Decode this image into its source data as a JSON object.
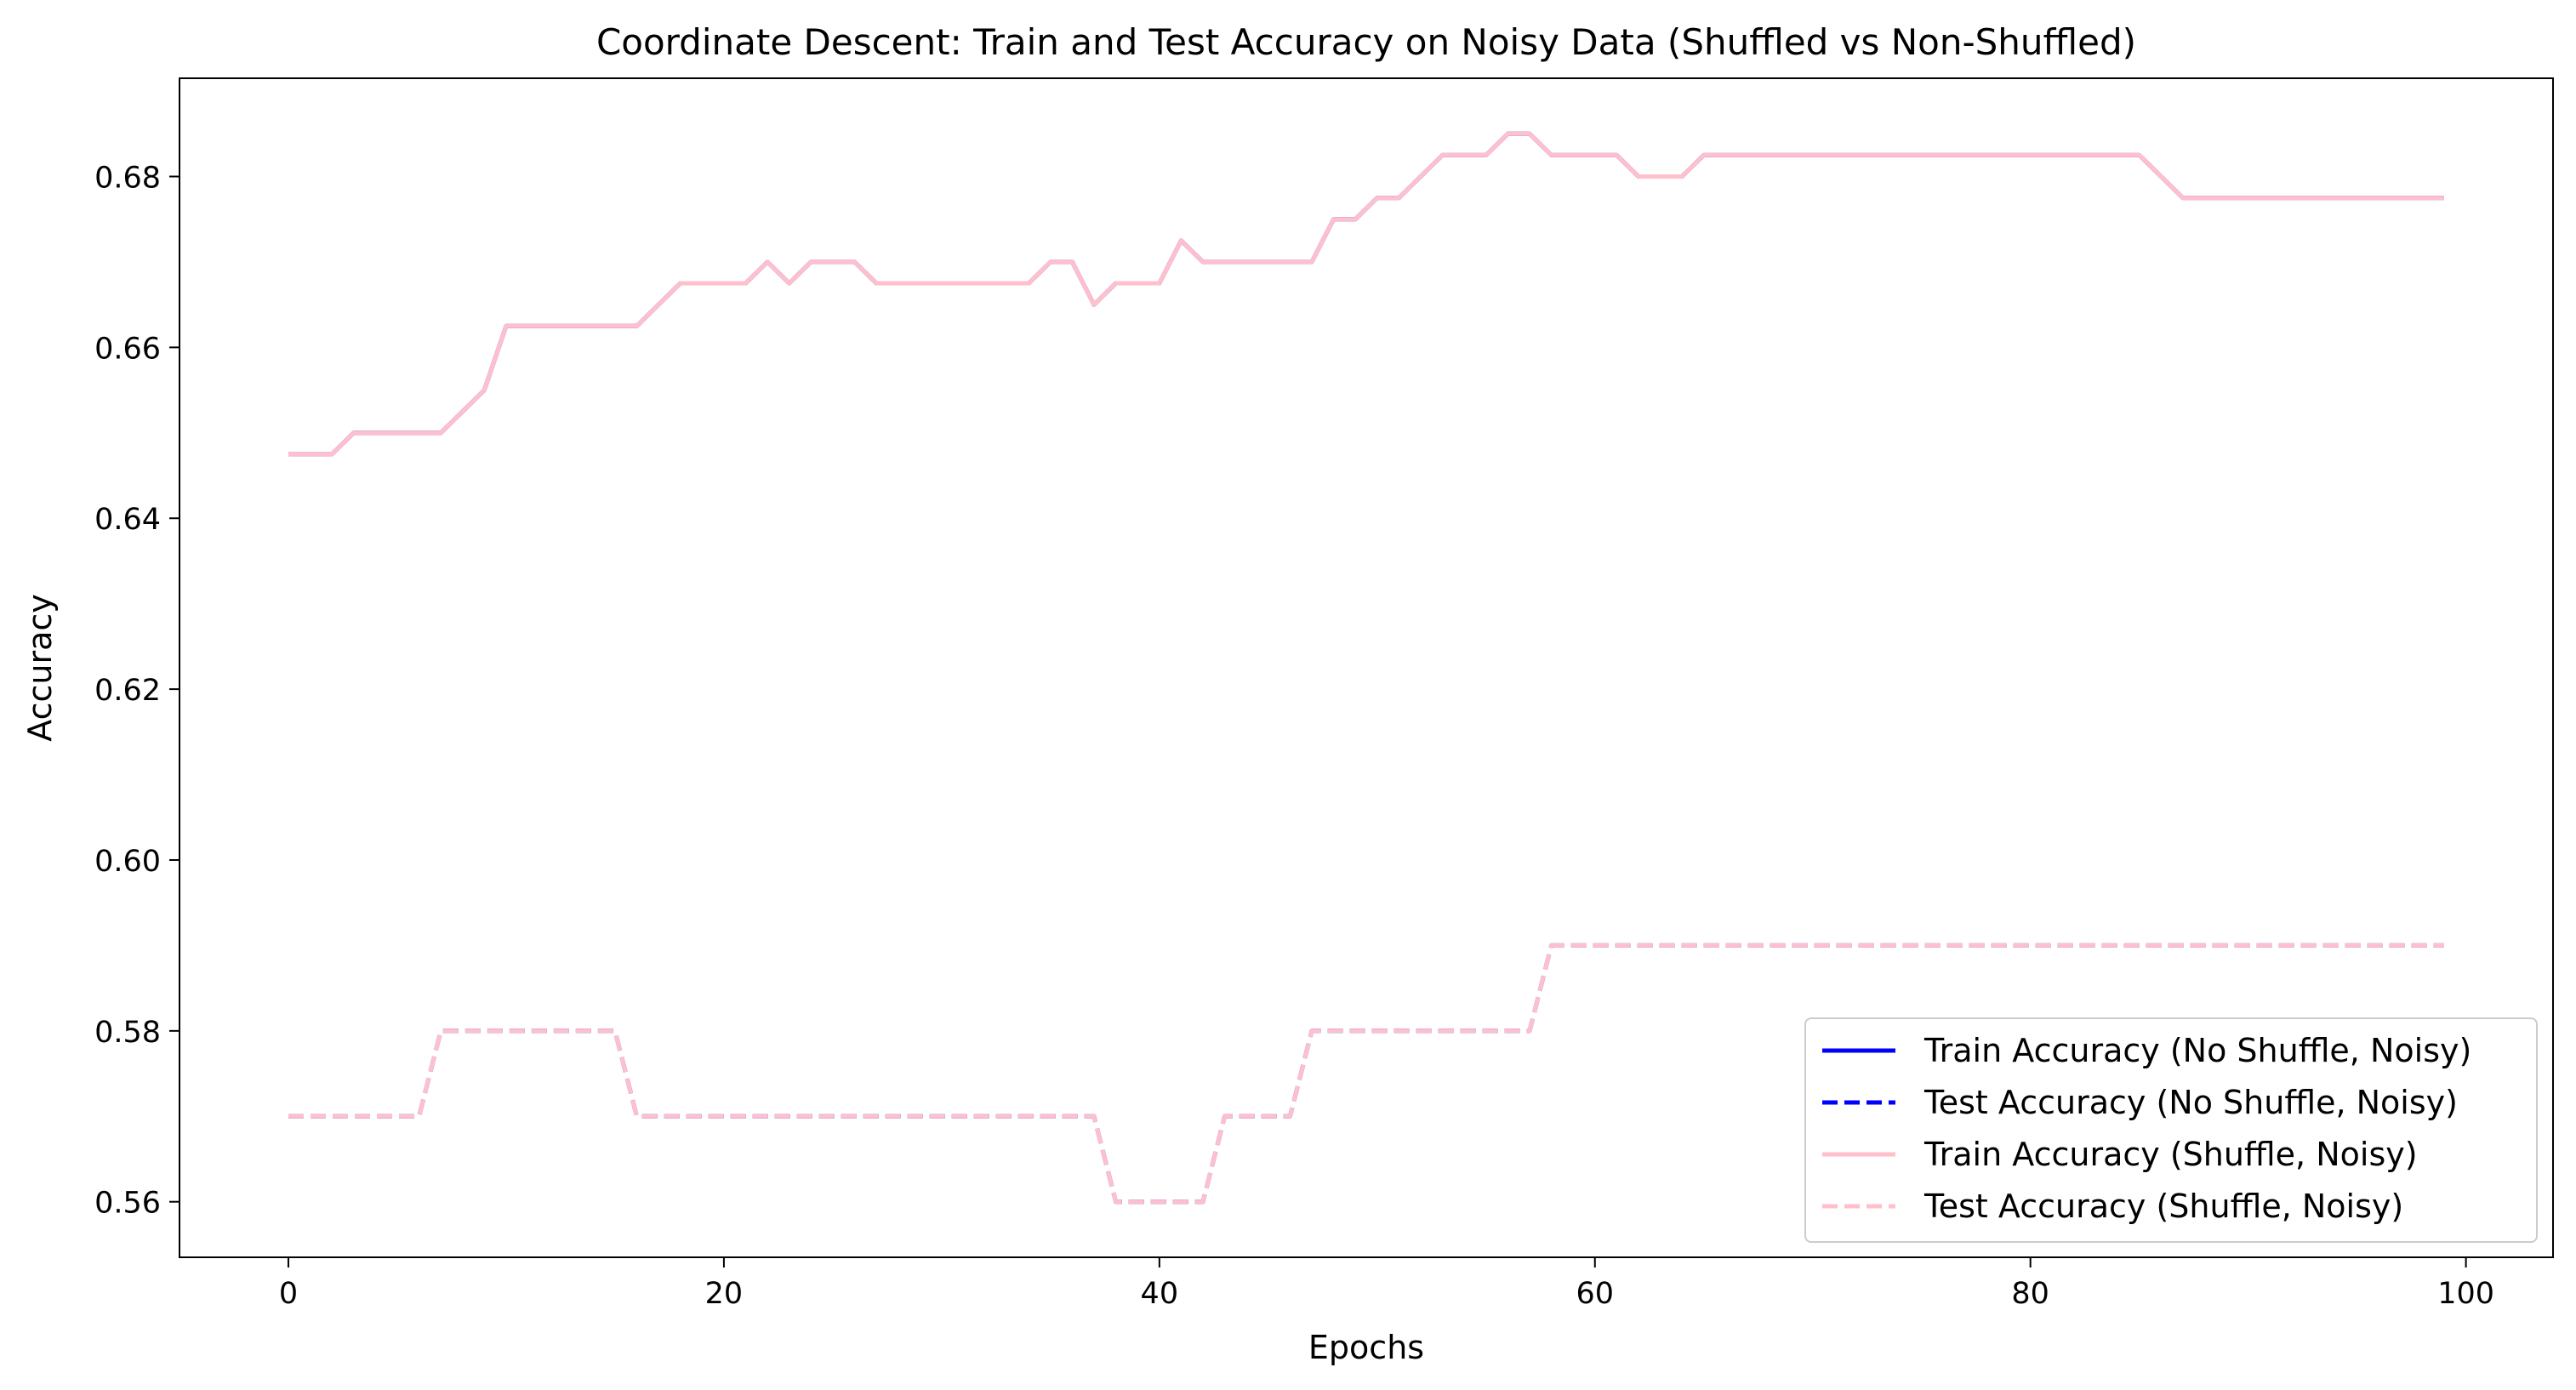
{
  "chart_data": {
    "type": "line",
    "title": "Coordinate Descent: Train and Test Accuracy on Noisy Data (Shuffled vs Non-Shuffled)",
    "xlabel": "Epochs",
    "ylabel": "Accuracy",
    "xlim": [
      -5,
      104
    ],
    "ylim": [
      0.5535,
      0.6915
    ],
    "xticks": [
      0,
      20,
      40,
      60,
      80,
      100
    ],
    "yticks": [
      0.56,
      0.58,
      0.6,
      0.62,
      0.64,
      0.66,
      0.68
    ],
    "ytick_labels": [
      "0.56",
      "0.58",
      "0.60",
      "0.62",
      "0.64",
      "0.66",
      "0.68"
    ],
    "grid": false,
    "legend_position": "lower-right",
    "series": [
      {
        "name": "Train Accuracy (No Shuffle, Noisy)",
        "color": "#0000ff",
        "dash": "solid",
        "points": [
          [
            0,
            0.6475
          ],
          [
            2,
            0.6475
          ],
          [
            3,
            0.65
          ],
          [
            7,
            0.65
          ],
          [
            9,
            0.655
          ],
          [
            10,
            0.6625
          ],
          [
            16,
            0.6625
          ],
          [
            18,
            0.6675
          ],
          [
            21,
            0.6675
          ],
          [
            22,
            0.67
          ],
          [
            23,
            0.6675
          ],
          [
            24,
            0.67
          ],
          [
            26,
            0.67
          ],
          [
            27,
            0.6675
          ],
          [
            34,
            0.6675
          ],
          [
            35,
            0.67
          ],
          [
            36,
            0.67
          ],
          [
            37,
            0.665
          ],
          [
            38,
            0.6675
          ],
          [
            40,
            0.6675
          ],
          [
            41,
            0.6725
          ],
          [
            42,
            0.67
          ],
          [
            47,
            0.67
          ],
          [
            48,
            0.675
          ],
          [
            49,
            0.675
          ],
          [
            50,
            0.6775
          ],
          [
            51,
            0.6775
          ],
          [
            53,
            0.6825
          ],
          [
            55,
            0.6825
          ],
          [
            56,
            0.685
          ],
          [
            57,
            0.685
          ],
          [
            58,
            0.6825
          ],
          [
            61,
            0.6825
          ],
          [
            62,
            0.68
          ],
          [
            64,
            0.68
          ],
          [
            65,
            0.6825
          ],
          [
            85,
            0.6825
          ],
          [
            87,
            0.6775
          ],
          [
            99,
            0.6775
          ]
        ]
      },
      {
        "name": "Test Accuracy (No Shuffle, Noisy)",
        "color": "#0000ff",
        "dash": "dashed",
        "points": [
          [
            0,
            0.57
          ],
          [
            6,
            0.57
          ],
          [
            7,
            0.58
          ],
          [
            15,
            0.58
          ],
          [
            16,
            0.57
          ],
          [
            37,
            0.57
          ],
          [
            38,
            0.56
          ],
          [
            42,
            0.56
          ],
          [
            43,
            0.57
          ],
          [
            46,
            0.57
          ],
          [
            47,
            0.58
          ],
          [
            57,
            0.58
          ],
          [
            58,
            0.59
          ],
          [
            99,
            0.59
          ]
        ]
      },
      {
        "name": "Train Accuracy (Shuffle, Noisy)",
        "color": "#ffc0cb",
        "dash": "solid",
        "points": [
          [
            0,
            0.6475
          ],
          [
            2,
            0.6475
          ],
          [
            3,
            0.65
          ],
          [
            7,
            0.65
          ],
          [
            9,
            0.655
          ],
          [
            10,
            0.6625
          ],
          [
            16,
            0.6625
          ],
          [
            18,
            0.6675
          ],
          [
            21,
            0.6675
          ],
          [
            22,
            0.67
          ],
          [
            23,
            0.6675
          ],
          [
            24,
            0.67
          ],
          [
            26,
            0.67
          ],
          [
            27,
            0.6675
          ],
          [
            34,
            0.6675
          ],
          [
            35,
            0.67
          ],
          [
            36,
            0.67
          ],
          [
            37,
            0.665
          ],
          [
            38,
            0.6675
          ],
          [
            40,
            0.6675
          ],
          [
            41,
            0.6725
          ],
          [
            42,
            0.67
          ],
          [
            47,
            0.67
          ],
          [
            48,
            0.675
          ],
          [
            49,
            0.675
          ],
          [
            50,
            0.6775
          ],
          [
            51,
            0.6775
          ],
          [
            53,
            0.6825
          ],
          [
            55,
            0.6825
          ],
          [
            56,
            0.685
          ],
          [
            57,
            0.685
          ],
          [
            58,
            0.6825
          ],
          [
            61,
            0.6825
          ],
          [
            62,
            0.68
          ],
          [
            64,
            0.68
          ],
          [
            65,
            0.6825
          ],
          [
            85,
            0.6825
          ],
          [
            87,
            0.6775
          ],
          [
            99,
            0.6775
          ]
        ]
      },
      {
        "name": "Test Accuracy (Shuffle, Noisy)",
        "color": "#ffc0cb",
        "dash": "dashed",
        "points": [
          [
            0,
            0.57
          ],
          [
            6,
            0.57
          ],
          [
            7,
            0.58
          ],
          [
            15,
            0.58
          ],
          [
            16,
            0.57
          ],
          [
            37,
            0.57
          ],
          [
            38,
            0.56
          ],
          [
            42,
            0.56
          ],
          [
            43,
            0.57
          ],
          [
            46,
            0.57
          ],
          [
            47,
            0.58
          ],
          [
            57,
            0.58
          ],
          [
            58,
            0.59
          ],
          [
            99,
            0.59
          ]
        ]
      }
    ]
  }
}
